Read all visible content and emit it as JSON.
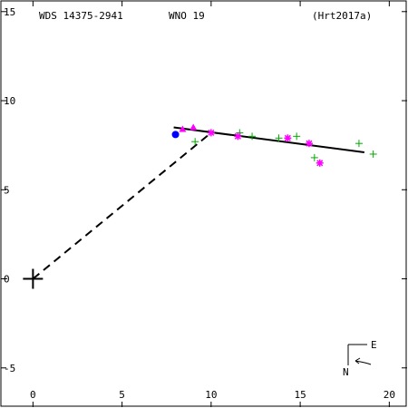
{
  "header": {
    "wds": "WDS 14375-2941",
    "discoverer": "WNO  19",
    "reference": "(Hrt2017a)"
  },
  "orientation": {
    "east_label": "E",
    "north_label": "N"
  },
  "colors": {
    "axes": "#000000",
    "orbit": "#000000",
    "green": "#00aa00",
    "magenta": "#ff00ff",
    "blue": "#0000ff",
    "fit_segment": "#ff0000"
  },
  "chart_data": {
    "type": "scatter",
    "xlim": [
      -1.8,
      21
    ],
    "ylim": [
      -7.2,
      15.6
    ],
    "x_ticks": [
      0,
      5,
      10,
      15,
      20
    ],
    "y_ticks": [
      -5,
      0,
      5,
      10,
      15
    ],
    "x_tick_labels": [
      "0",
      "5",
      "10",
      "15",
      "20"
    ],
    "y_tick_labels": [
      "-5",
      "0",
      "5",
      "10",
      "15"
    ],
    "primary": [
      0,
      0
    ],
    "node_line": [
      [
        0,
        0
      ],
      [
        10,
        8.2
      ]
    ],
    "fit_line": [
      [
        7.9,
        8.5
      ],
      [
        18.6,
        7.1
      ]
    ],
    "series": [
      {
        "marker": "plus",
        "color": "green",
        "points": [
          [
            9.1,
            7.7
          ],
          [
            11.6,
            8.2
          ],
          [
            12.3,
            8.0
          ],
          [
            13.8,
            7.9
          ],
          [
            14.8,
            8.0
          ],
          [
            15.8,
            6.8
          ],
          [
            18.3,
            7.6
          ],
          [
            19.1,
            7.0
          ]
        ]
      },
      {
        "marker": "asterisk",
        "color": "magenta",
        "points": [
          [
            10.0,
            8.2
          ],
          [
            11.5,
            8.0
          ],
          [
            14.3,
            7.9
          ],
          [
            15.5,
            7.6
          ],
          [
            16.1,
            6.5
          ]
        ]
      },
      {
        "marker": "triangle",
        "color": "magenta",
        "points": [
          [
            8.4,
            8.4
          ],
          [
            9.0,
            8.5
          ]
        ]
      },
      {
        "marker": "dot",
        "color": "blue",
        "points": [
          [
            8.0,
            8.1
          ]
        ]
      }
    ]
  }
}
